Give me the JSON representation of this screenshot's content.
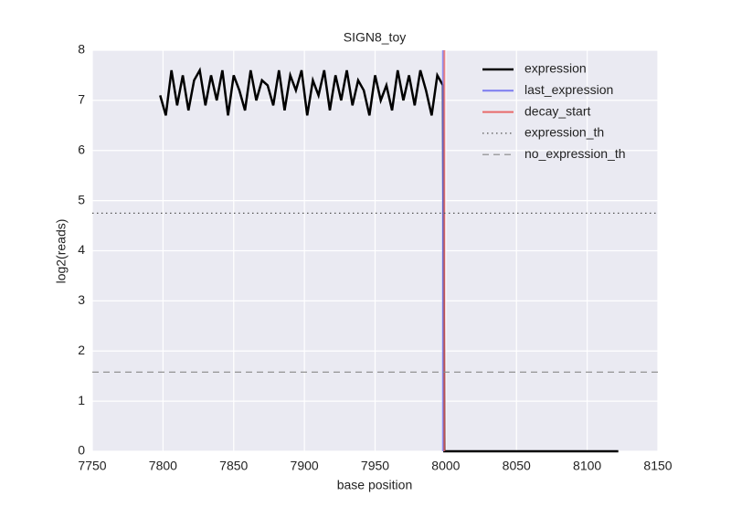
{
  "chart_data": {
    "type": "line",
    "title": "SIGN8_toy",
    "xlabel": "base position",
    "ylabel": "log2(reads)",
    "xlim": [
      7750,
      8150
    ],
    "xticks": [
      7750,
      7800,
      7850,
      7900,
      7950,
      8000,
      8050,
      8100,
      8150
    ],
    "ylim": [
      0,
      8
    ],
    "yticks": [
      0,
      1,
      2,
      3,
      4,
      5,
      6,
      7,
      8
    ],
    "grid": true,
    "legend": "upper right",
    "series": [
      {
        "name": "expression",
        "color": "#000000",
        "style": "solid",
        "x": [
          7798,
          7802,
          7806,
          7810,
          7814,
          7818,
          7822,
          7826,
          7830,
          7834,
          7838,
          7842,
          7846,
          7850,
          7854,
          7858,
          7862,
          7866,
          7870,
          7874,
          7878,
          7882,
          7886,
          7890,
          7894,
          7898,
          7902,
          7906,
          7910,
          7914,
          7918,
          7922,
          7926,
          7930,
          7934,
          7938,
          7942,
          7946,
          7950,
          7954,
          7958,
          7962,
          7966,
          7970,
          7974,
          7978,
          7982,
          7986,
          7990,
          7994,
          7998,
          7999,
          8122
        ],
        "values": [
          7.1,
          6.7,
          7.6,
          6.9,
          7.5,
          6.8,
          7.4,
          7.6,
          6.9,
          7.5,
          7.0,
          7.6,
          6.7,
          7.5,
          7.2,
          6.8,
          7.6,
          7.0,
          7.4,
          7.3,
          6.9,
          7.6,
          6.8,
          7.5,
          7.2,
          7.6,
          6.7,
          7.4,
          7.1,
          7.6,
          6.8,
          7.5,
          7.0,
          7.6,
          6.9,
          7.4,
          7.2,
          6.7,
          7.5,
          7.0,
          7.3,
          6.8,
          7.6,
          7.0,
          7.5,
          6.9,
          7.6,
          7.2,
          6.7,
          7.5,
          7.3,
          0,
          0
        ]
      },
      {
        "name": "last_expression",
        "color": "#7b7bf0",
        "style": "vline",
        "x": 7998
      },
      {
        "name": "decay_start",
        "color": "#e86a6a",
        "style": "vline",
        "x": 7999
      },
      {
        "name": "expression_th",
        "color": "#555555",
        "style": "dotted",
        "y": 4.75
      },
      {
        "name": "no_expression_th",
        "color": "#888888",
        "style": "dashed",
        "y": 1.58
      }
    ]
  }
}
